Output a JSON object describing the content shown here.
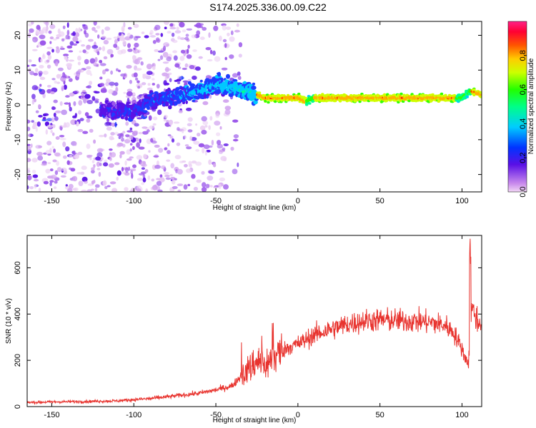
{
  "title": "S174.2025.336.00.09.C22",
  "chart_data": [
    {
      "type": "heatmap",
      "xlabel": "Height of straight line (km)",
      "ylabel": "Frequency (Hz)",
      "xlim": [
        -165,
        112
      ],
      "ylim": [
        -25,
        24
      ],
      "x_ticks": [
        "-150",
        "-100",
        "-50",
        "0",
        "50",
        "100"
      ],
      "y_ticks": [
        "20",
        "10",
        "0",
        "-10",
        "-20"
      ],
      "colorbar": {
        "label": "Normalized spectral amplitude",
        "range": [
          0.0,
          1.0
        ],
        "ticks": [
          "0.0",
          "0.2",
          "0.4",
          "0.6",
          "0.8"
        ]
      },
      "ridge": {
        "x": [
          -165,
          -140,
          -120,
          -100,
          -90,
          -80,
          -70,
          -60,
          -50,
          -40,
          -30,
          -25,
          -20,
          -10,
          0,
          5,
          10,
          20,
          40,
          60,
          80,
          90,
          100,
          105,
          112
        ],
        "freq_hz": [
          0,
          0,
          -1,
          -2,
          1,
          2,
          3,
          4,
          6,
          5,
          4,
          3,
          2,
          2,
          2,
          1,
          2,
          2,
          2,
          2,
          2,
          2,
          2,
          4,
          3
        ]
      }
    },
    {
      "type": "line",
      "xlabel": "Height of straight line (km)",
      "ylabel": "SNR (10 * v/v)",
      "xlim": [
        -165,
        112
      ],
      "ylim": [
        0,
        740
      ],
      "x_ticks": [
        "-150",
        "-100",
        "-50",
        "0",
        "50",
        "100"
      ],
      "y_ticks": [
        "0",
        "200",
        "400",
        "600"
      ],
      "series": [
        {
          "name": "SNR",
          "color": "#e8332e",
          "x": [
            -165,
            -150,
            -130,
            -110,
            -100,
            -90,
            -80,
            -70,
            -60,
            -50,
            -40,
            -35,
            -30,
            -25,
            -20,
            -15,
            -10,
            -5,
            0,
            5,
            10,
            20,
            30,
            40,
            50,
            60,
            70,
            80,
            90,
            95,
            100,
            102,
            104,
            106,
            110,
            112
          ],
          "values": [
            18,
            20,
            22,
            25,
            30,
            35,
            42,
            50,
            58,
            72,
            90,
            130,
            160,
            200,
            180,
            210,
            240,
            260,
            270,
            290,
            310,
            335,
            355,
            370,
            375,
            372,
            370,
            365,
            350,
            320,
            250,
            210,
            190,
            430,
            360,
            370
          ]
        }
      ]
    }
  ]
}
